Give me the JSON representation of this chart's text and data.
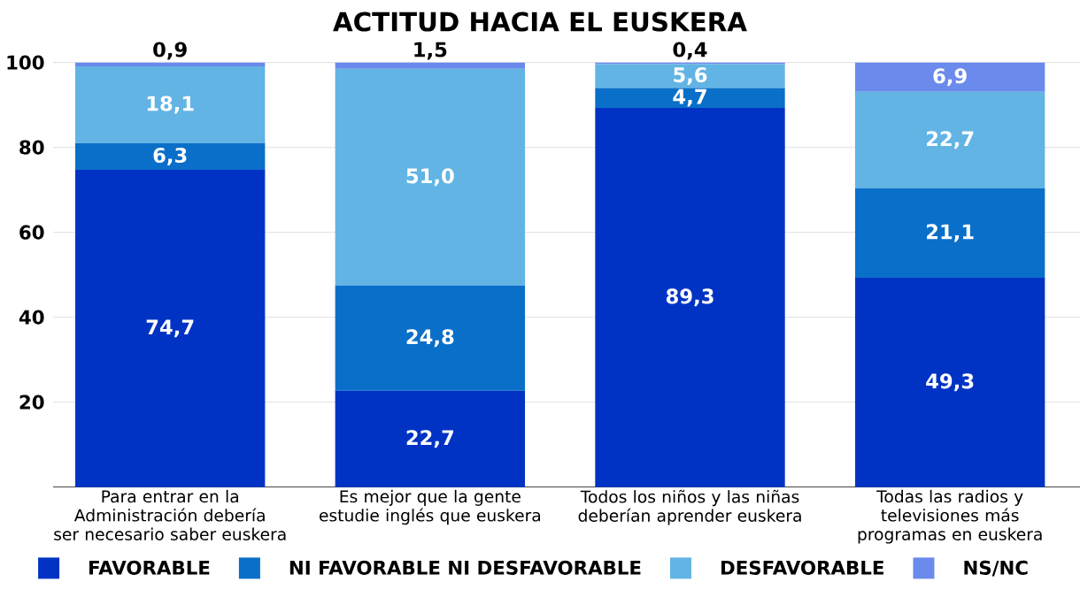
{
  "chart_data": {
    "type": "bar",
    "stacked": true,
    "title": "ACTITUD HACIA EL EUSKERA",
    "categories": [
      "Para entrar en la Administración debería ser necesario saber euskera",
      "Es mejor que la gente estudie inglés que euskera",
      "Todos los niños y las niñas deberían aprender euskera",
      "Todas las radios y televisiones más programas en euskera"
    ],
    "series": [
      {
        "name": "FAVORABLE",
        "color": "#0033c4",
        "values": [
          74.7,
          22.7,
          89.3,
          49.3
        ],
        "value_labels": [
          "74,7",
          "22,7",
          "89,3",
          "49,3"
        ]
      },
      {
        "name": "NI FAVORABLE NI DESFAVORABLE",
        "color": "#0a6fc8",
        "values": [
          6.3,
          24.8,
          4.7,
          21.1
        ],
        "value_labels": [
          "6,3",
          "24,8",
          "4,7",
          "21,1"
        ]
      },
      {
        "name": "DESFAVORABLE",
        "color": "#62b4e4",
        "values": [
          18.1,
          51.0,
          5.6,
          22.7
        ],
        "value_labels": [
          "18,1",
          "51,0",
          "5,6",
          "22,7"
        ]
      },
      {
        "name": "NS/NC",
        "color": "#6a8aec",
        "values": [
          0.9,
          1.5,
          0.4,
          6.9
        ],
        "value_labels": [
          "0,9",
          "1,5",
          "0,4",
          "6,9"
        ]
      }
    ],
    "ylim": [
      0,
      100
    ],
    "yticks": [
      20,
      40,
      60,
      80,
      100
    ],
    "grid": "y",
    "legend": "bottom"
  }
}
